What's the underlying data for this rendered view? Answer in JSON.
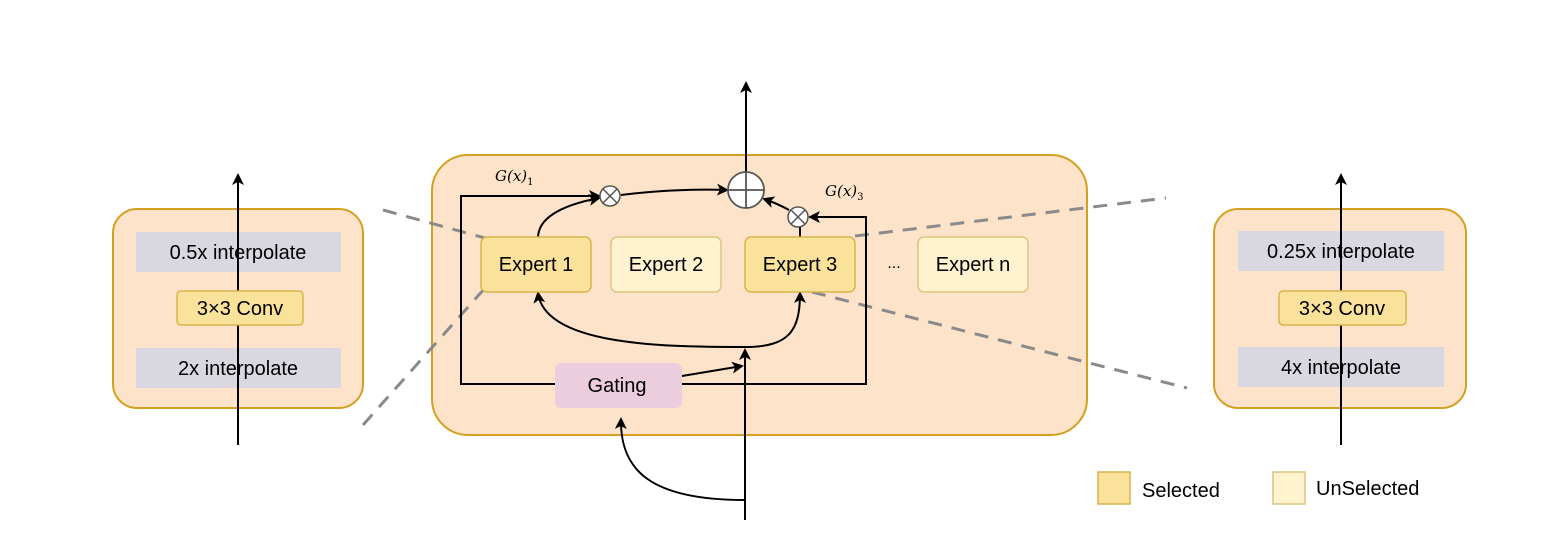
{
  "colors": {
    "container_fill": "#FDE3C9",
    "container_stroke": "#D4A020",
    "selected_fill": "#FBE29A",
    "selected_stroke": "#D8B34C",
    "unselected_fill": "#FFF3CF",
    "unselected_stroke": "#DCC482",
    "interp_fill": "#D9D8E0",
    "gating_fill": "#EBCDDD",
    "dash_color": "#8A8A8A"
  },
  "left_expert": {
    "top": "0.5x interpolate",
    "mid": "3×3 Conv",
    "bottom": "2x interpolate"
  },
  "right_expert": {
    "top": "0.25x interpolate",
    "mid": "3×3 Conv",
    "bottom": "4x interpolate"
  },
  "moe": {
    "experts": [
      "Expert 1",
      "Expert 2",
      "Expert 3",
      "Expert n"
    ],
    "ellipsis": "...",
    "gating": "Gating",
    "g1": {
      "main": "G(x)",
      "sub": "1"
    },
    "g3": {
      "main": "G(x)",
      "sub": "3"
    }
  },
  "legend": {
    "selected": "Selected",
    "unselected": "UnSelected"
  }
}
